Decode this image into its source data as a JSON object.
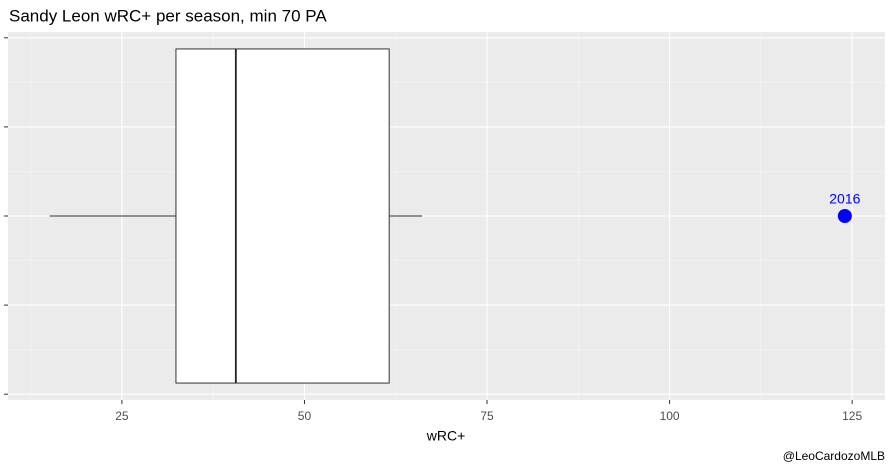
{
  "chart_data": {
    "type": "boxplot",
    "title": "Sandy Leon wRC+ per season, min 70 PA",
    "x_label": "wRC+",
    "caption": "@LeoCardozoMLB",
    "box": {
      "min": 15.1,
      "q1": 32.4,
      "median": 40.6,
      "q3": 61.6,
      "max": 66.1
    },
    "outliers": [
      124
    ],
    "outlier_labels": [
      "2016"
    ],
    "outlier_color": "#0000ff",
    "xlim": [
      9.4,
      129.5
    ],
    "xticks": [
      25,
      50,
      75,
      100,
      125
    ],
    "ylim": [
      -0.413,
      0.413
    ],
    "yticks": [
      -0.4,
      -0.2,
      0,
      0.2,
      0.4
    ],
    "grid": true
  }
}
